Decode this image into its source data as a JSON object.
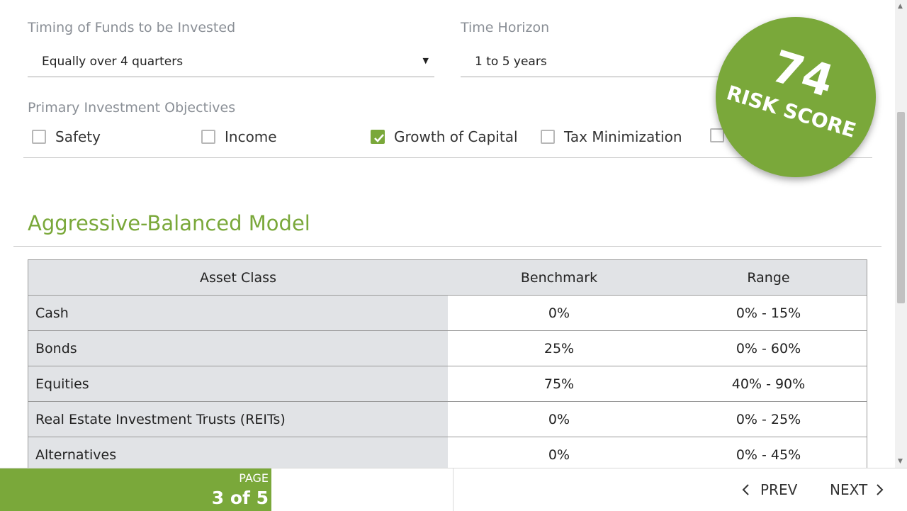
{
  "timing": {
    "label": "Timing of Funds to be Invested",
    "value": "Equally over 4 quarters"
  },
  "horizon": {
    "label": "Time Horizon",
    "value": "1 to 5 years"
  },
  "objectives": {
    "label": "Primary Investment Objectives",
    "items": [
      {
        "label": "Safety",
        "checked": false
      },
      {
        "label": "Income",
        "checked": false
      },
      {
        "label": "Growth of Capital",
        "checked": true
      },
      {
        "label": "Tax Minimization",
        "checked": false
      }
    ]
  },
  "risk": {
    "score": "74",
    "label": "RISK SCORE"
  },
  "model": {
    "title": "Aggressive-Balanced Model",
    "columns": [
      "Asset Class",
      "Benchmark",
      "Range"
    ],
    "rows": [
      {
        "asset": "Cash",
        "benchmark": "0%",
        "range": "0% - 15%"
      },
      {
        "asset": "Bonds",
        "benchmark": "25%",
        "range": "0% - 60%"
      },
      {
        "asset": "Equities",
        "benchmark": "75%",
        "range": "40% - 90%"
      },
      {
        "asset": "Real Estate Investment Trusts (REITs)",
        "benchmark": "0%",
        "range": "0% - 25%"
      },
      {
        "asset": "Alternatives",
        "benchmark": "0%",
        "range": "0% - 45%"
      }
    ]
  },
  "pager": {
    "label": "PAGE",
    "value": "3 of 5",
    "prev": "PREV",
    "next": "NEXT"
  },
  "colors": {
    "accent": "#7aa83a",
    "table_shade": "#e1e3e6"
  }
}
